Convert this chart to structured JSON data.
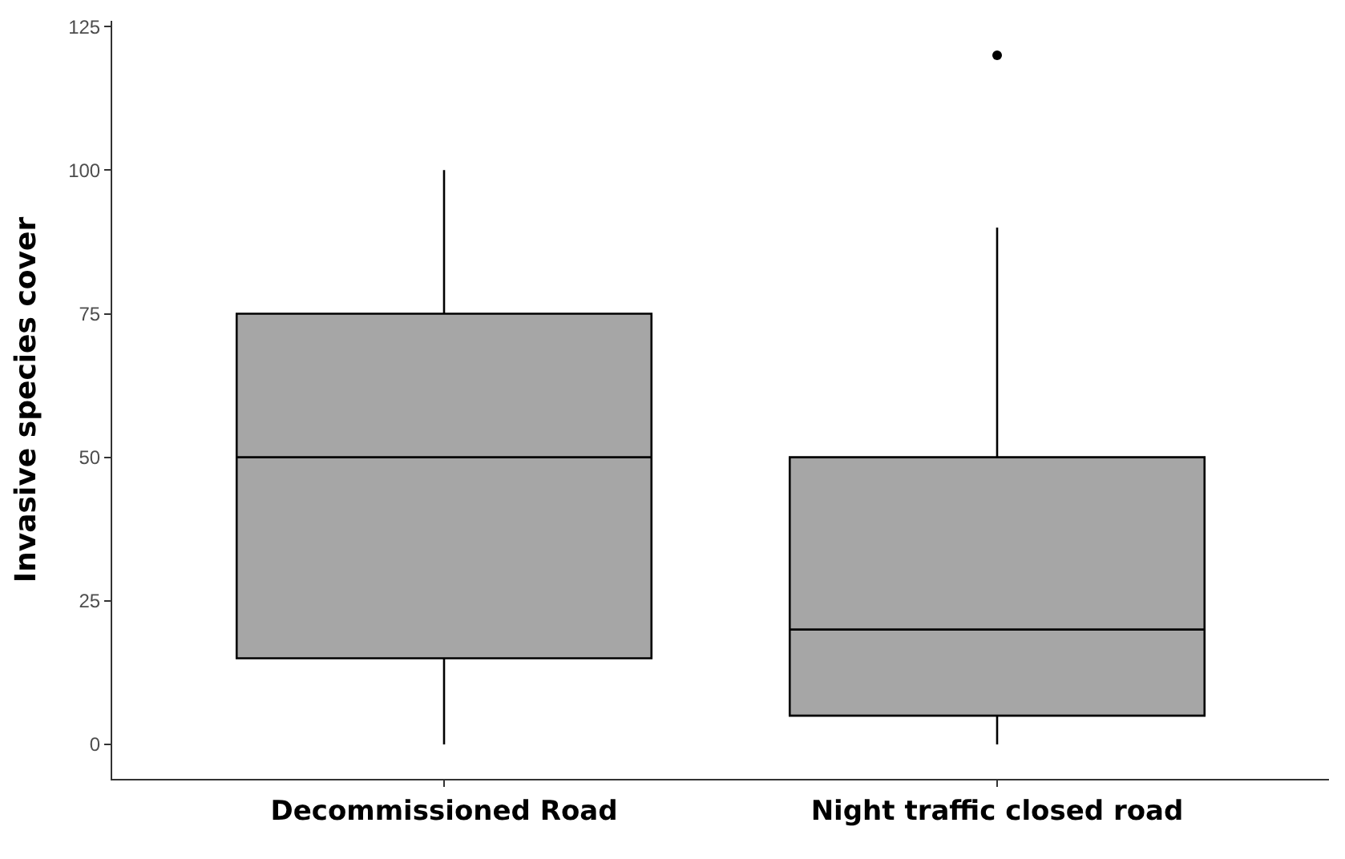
{
  "chart_data": {
    "type": "box",
    "ylabel": "Invasive species cover",
    "categories": [
      "Decommissioned Road",
      "Night traffic closed road"
    ],
    "boxes": [
      {
        "low": 0,
        "q1": 15,
        "median": 50,
        "q3": 75,
        "high": 100
      },
      {
        "low": 0,
        "q1": 5,
        "median": 20,
        "q3": 50,
        "high": 90,
        "outliers": [
          120
        ]
      }
    ],
    "color": "#a6a6a6",
    "ylim": [
      -6,
      126
    ],
    "yticks": [
      0,
      25,
      50,
      75,
      100,
      125
    ]
  }
}
